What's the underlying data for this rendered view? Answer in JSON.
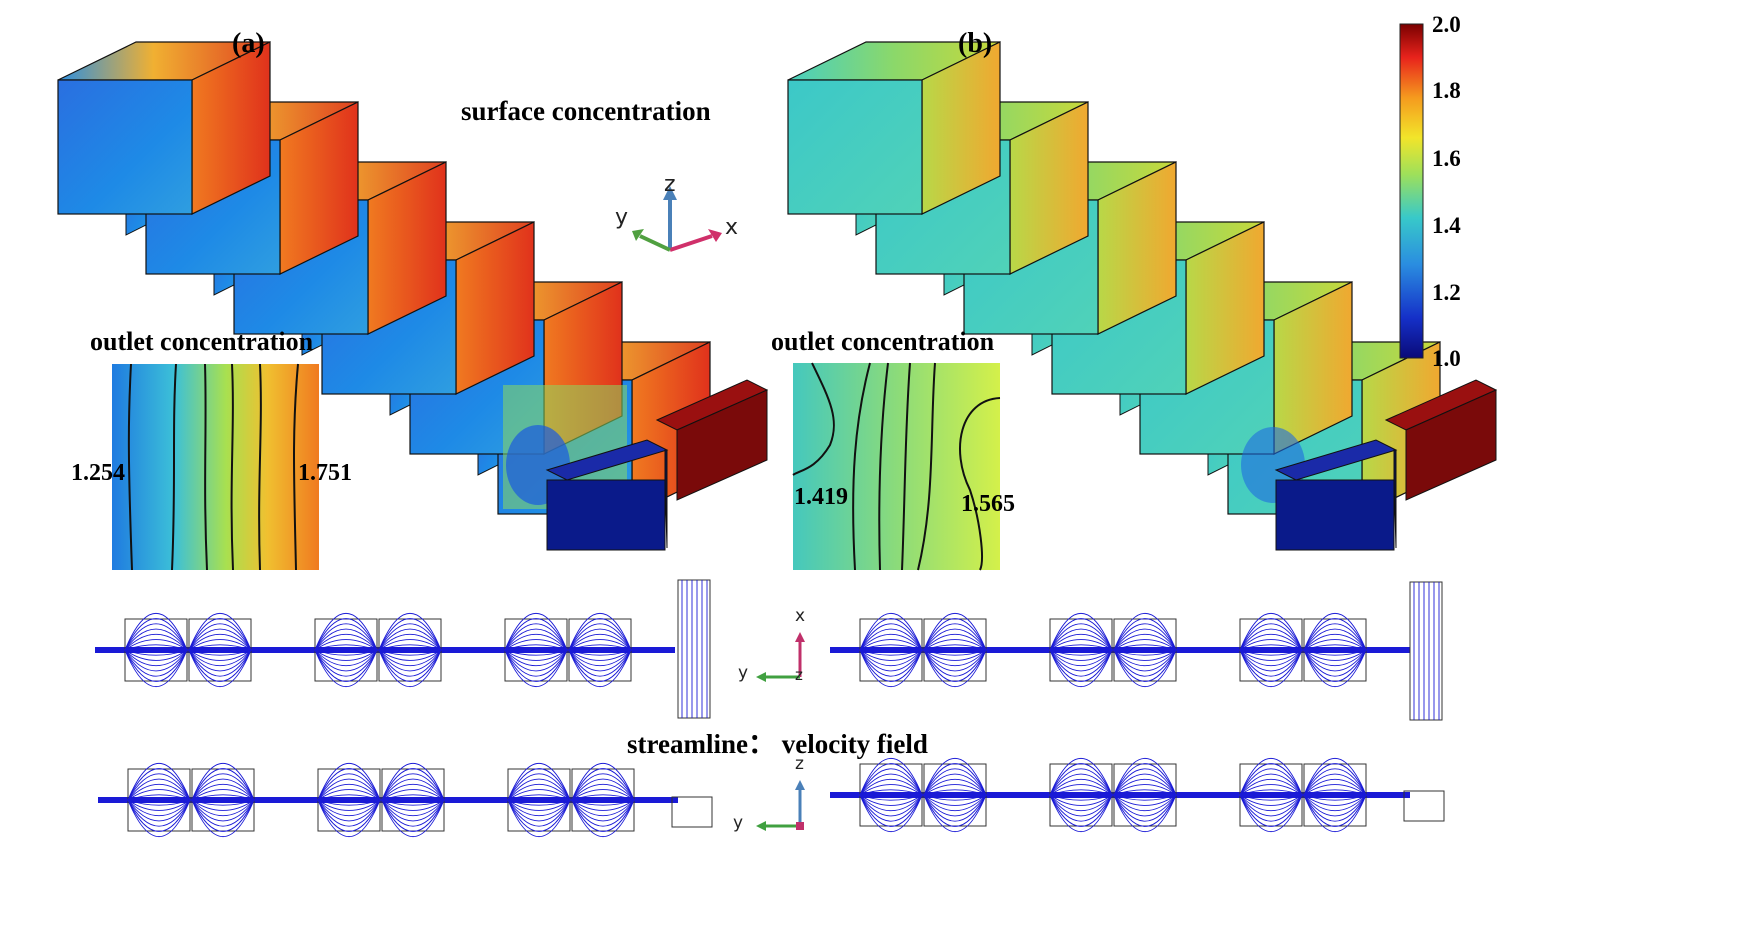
{
  "panels": {
    "a": "(a)",
    "b": "(b)"
  },
  "titles": {
    "surface": "surface concentration",
    "outlet_a": "outlet concentration",
    "outlet_b": "outlet concentration",
    "streamline": "streamline： velocity field"
  },
  "outlet_values": {
    "a_left": "1.254",
    "a_right": "1.751",
    "b_left": "1.419",
    "b_right": "1.565"
  },
  "colorbar": {
    "ticks": [
      "2.0",
      "1.8",
      "1.6",
      "1.4",
      "1.2",
      "1.0"
    ],
    "colors": [
      "#7a0000",
      "#e8231c",
      "#f59a1e",
      "#f2e52a",
      "#9ee05a",
      "#38c9c9",
      "#2a8de0",
      "#1530c8",
      "#0a0a78"
    ]
  },
  "axes": {
    "x": "x",
    "y": "y",
    "z": "z"
  },
  "colors": {
    "streamline": "#1a1ad6",
    "inlet_cold": "#0a1a8a",
    "inlet_hot": "#7a0a0a"
  }
}
